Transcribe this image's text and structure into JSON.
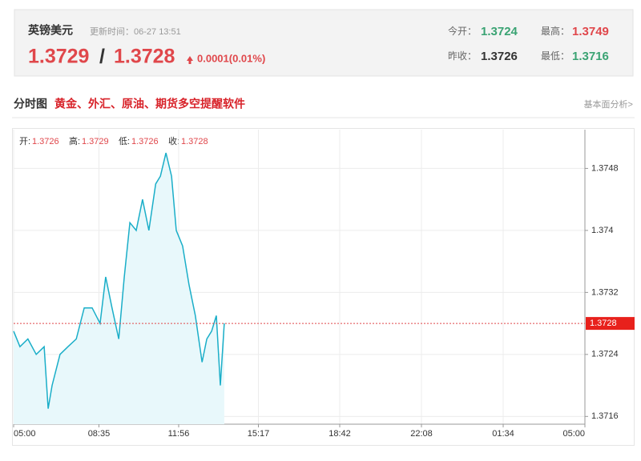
{
  "header": {
    "name": "英镑美元",
    "update_time": "更新时间：06-27 13:51",
    "bid": "1.3729",
    "separator": "/",
    "ask": "1.3728",
    "change": "0.0001(0.01%)",
    "stats": [
      {
        "label": "今开：",
        "value": "1.3724"
      },
      {
        "label": "最高：",
        "value": "1.3749"
      },
      {
        "label": "昨收：",
        "value": "1.3726"
      },
      {
        "label": "最低：",
        "value": "1.3716"
      }
    ]
  },
  "section": {
    "title": "分时图",
    "promo": "黄金、外汇、原油、期货多空提醒软件",
    "link": "基本面分析>"
  },
  "chart_data": {
    "type": "line",
    "info": [
      {
        "label": "开:",
        "value": "1.3726"
      },
      {
        "label": "高:",
        "value": "1.3729"
      },
      {
        "label": "低:",
        "value": "1.3726"
      },
      {
        "label": "收:",
        "value": "1.3728"
      }
    ],
    "x": [
      0,
      16,
      36,
      57,
      77,
      87,
      97,
      117,
      137,
      158,
      178,
      198,
      218,
      232,
      248,
      265,
      279,
      293,
      309,
      325,
      341,
      358,
      370,
      384,
      398,
      410,
      426,
      442,
      458,
      475,
      487,
      499,
      511,
      521,
      531
    ],
    "series": [
      {
        "color": "#1aaec8",
        "values": [
          1.3727,
          1.3725,
          1.3726,
          1.3724,
          1.3725,
          1.3717,
          1.372,
          1.3724,
          1.3725,
          1.3726,
          1.373,
          1.373,
          1.3728,
          1.3734,
          1.373,
          1.3726,
          1.3734,
          1.3741,
          1.374,
          1.3744,
          1.374,
          1.3746,
          1.3747,
          1.375,
          1.3747,
          1.374,
          1.3738,
          1.3733,
          1.3729,
          1.3723,
          1.3726,
          1.3727,
          1.3729,
          1.372,
          1.3728
        ]
      }
    ],
    "last_price": 1.3728,
    "xlim": [
      0,
      1440
    ],
    "xticks": [
      {
        "value": 0,
        "label": "05:00"
      },
      {
        "value": 215,
        "label": "08:35"
      },
      {
        "value": 416,
        "label": "11:56"
      },
      {
        "value": 617,
        "label": "15:17"
      },
      {
        "value": 822,
        "label": "18:42"
      },
      {
        "value": 1028,
        "label": "22:08"
      },
      {
        "value": 1234,
        "label": "01:34"
      },
      {
        "value": 1440,
        "label": "05:00"
      }
    ],
    "ylim": [
      1.3715,
      1.3753
    ],
    "yticks": [
      1.3716,
      1.3724,
      1.3732,
      1.374,
      1.3748
    ],
    "grid": true
  }
}
